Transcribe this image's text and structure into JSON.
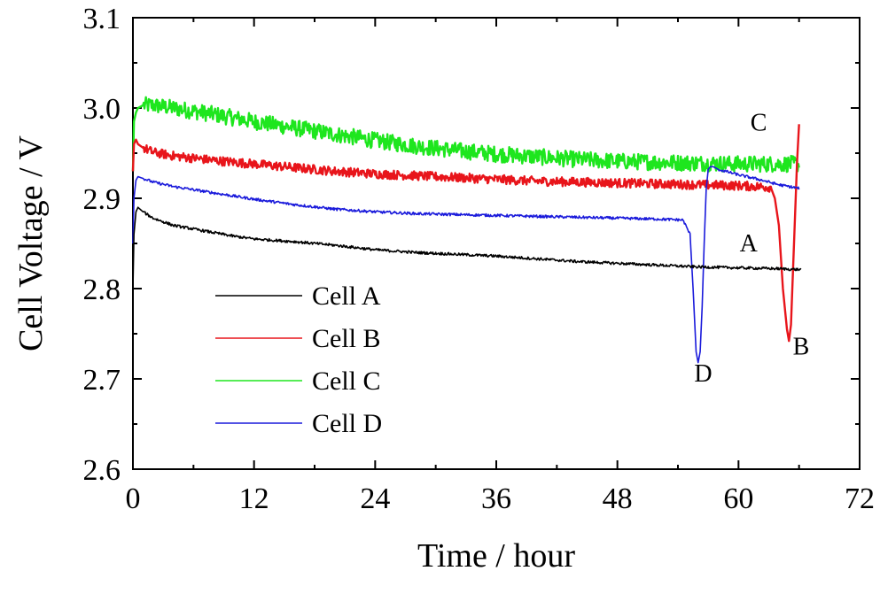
{
  "chart_data": {
    "type": "line",
    "xlabel": "Time / hour",
    "ylabel": "Cell Voltage / V",
    "xlim": [
      0,
      72
    ],
    "ylim": [
      2.6,
      3.1
    ],
    "xticks": [
      "0",
      "12",
      "24",
      "36",
      "48",
      "60",
      "72"
    ],
    "yticks": [
      "2.6",
      "2.7",
      "2.8",
      "2.9",
      "3.0",
      "3.1"
    ],
    "grid": false,
    "legend_position": "lower-left",
    "series": [
      {
        "name": "Cell A",
        "color": "#000000",
        "noise": 0.0015,
        "x": [
          0,
          0.1,
          0.3,
          0.5,
          1,
          2,
          4,
          6,
          8,
          10,
          12,
          16,
          20,
          24,
          28,
          32,
          36,
          40,
          44,
          48,
          52,
          56,
          60,
          64,
          66.2
        ],
        "y": [
          2.8,
          2.86,
          2.885,
          2.89,
          2.885,
          2.878,
          2.87,
          2.866,
          2.862,
          2.858,
          2.855,
          2.852,
          2.848,
          2.843,
          2.84,
          2.838,
          2.836,
          2.833,
          2.83,
          2.828,
          2.826,
          2.824,
          2.823,
          2.822,
          2.821
        ]
      },
      {
        "name": "Cell B",
        "color": "#e8151b",
        "noise": 0.005,
        "x": [
          0,
          0.1,
          0.3,
          0.5,
          1,
          2,
          4,
          8,
          12,
          16,
          20,
          24,
          28,
          32,
          36,
          40,
          44,
          48,
          52,
          56,
          60,
          62,
          63.2,
          63.6,
          64.0,
          64.4,
          64.8,
          65.0,
          65.2,
          65.4,
          65.6,
          65.8,
          66.0
        ],
        "y": [
          2.93,
          2.96,
          2.965,
          2.96,
          2.956,
          2.951,
          2.947,
          2.942,
          2.938,
          2.934,
          2.93,
          2.927,
          2.925,
          2.923,
          2.921,
          2.919,
          2.918,
          2.917,
          2.916,
          2.915,
          2.914,
          2.913,
          2.912,
          2.9,
          2.87,
          2.8,
          2.755,
          2.742,
          2.76,
          2.82,
          2.88,
          2.94,
          2.982
        ]
      },
      {
        "name": "Cell C",
        "color": "#1ee61e",
        "noise": 0.009,
        "x": [
          0,
          0.1,
          0.3,
          0.5,
          1,
          2,
          4,
          8,
          12,
          16,
          20,
          24,
          28,
          32,
          36,
          40,
          44,
          48,
          52,
          56,
          60,
          64,
          66.0
        ],
        "y": [
          2.93,
          2.985,
          2.995,
          3.0,
          3.003,
          3.003,
          3.0,
          2.993,
          2.985,
          2.978,
          2.971,
          2.964,
          2.958,
          2.953,
          2.949,
          2.946,
          2.943,
          2.941,
          2.94,
          2.939,
          2.938,
          2.938,
          2.938
        ]
      },
      {
        "name": "Cell D",
        "color": "#1a1adb",
        "noise": 0.0015,
        "x": [
          0,
          0.1,
          0.3,
          0.5,
          1,
          2,
          4,
          8,
          12,
          16,
          20,
          24,
          28,
          32,
          36,
          40,
          44,
          48,
          52,
          54.5,
          55.2,
          55.5,
          55.8,
          56.0,
          56.2,
          56.4,
          56.6,
          56.8,
          57.0,
          57.2,
          57.5,
          58,
          60,
          62,
          64,
          66.0
        ],
        "y": [
          2.85,
          2.9,
          2.92,
          2.924,
          2.922,
          2.918,
          2.913,
          2.906,
          2.899,
          2.893,
          2.888,
          2.885,
          2.883,
          2.882,
          2.881,
          2.88,
          2.879,
          2.878,
          2.877,
          2.876,
          2.86,
          2.8,
          2.73,
          2.718,
          2.73,
          2.78,
          2.85,
          2.91,
          2.932,
          2.935,
          2.935,
          2.932,
          2.926,
          2.921,
          2.915,
          2.911
        ]
      }
    ],
    "annotations": [
      {
        "text": "A",
        "x": 61.0,
        "y": 2.841
      },
      {
        "text": "B",
        "x": 66.2,
        "y": 2.727
      },
      {
        "text": "C",
        "x": 62.0,
        "y": 2.975
      },
      {
        "text": "D",
        "x": 56.5,
        "y": 2.697
      }
    ]
  }
}
